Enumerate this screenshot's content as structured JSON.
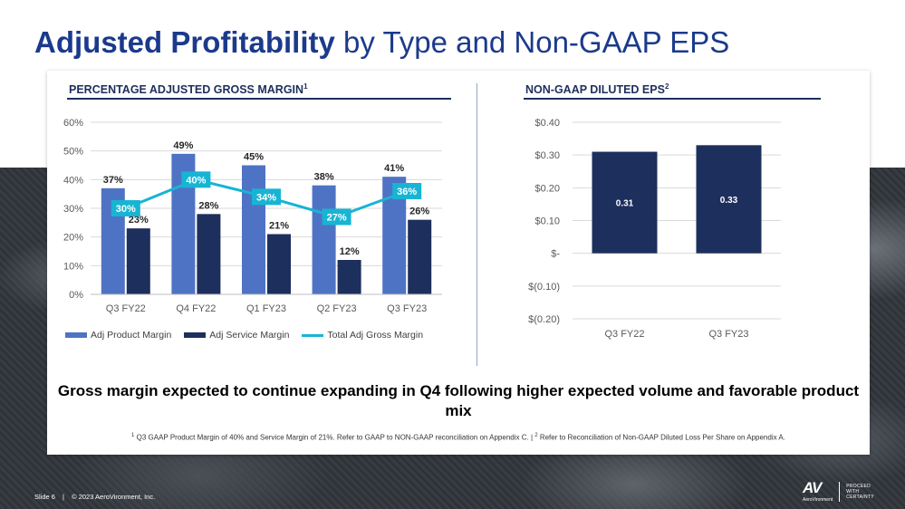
{
  "title": {
    "bold": "Adjusted Profitability",
    "rest": "by Type and Non-GAAP EPS"
  },
  "left": {
    "heading": "PERCENTAGE ADJUSTED GROSS MARGIN",
    "heading_sup": "1"
  },
  "right": {
    "heading": "NON-GAAP DILUTED EPS",
    "heading_sup": "2"
  },
  "chart_data": [
    {
      "type": "bar",
      "title": "PERCENTAGE ADJUSTED GROSS MARGIN",
      "categories": [
        "Q3 FY22",
        "Q4 FY22",
        "Q1 FY23",
        "Q2 FY23",
        "Q3 FY23"
      ],
      "series": [
        {
          "name": "Adj Product Margin",
          "kind": "bar",
          "color": "#4f73c4",
          "values": [
            37,
            49,
            45,
            38,
            41
          ],
          "labels": [
            "37%",
            "49%",
            "45%",
            "38%",
            "41%"
          ]
        },
        {
          "name": "Adj Service Margin",
          "kind": "bar",
          "color": "#1d2f5c",
          "values": [
            23,
            28,
            21,
            12,
            26
          ],
          "labels": [
            "23%",
            "28%",
            "21%",
            "12%",
            "26%"
          ]
        },
        {
          "name": "Total Adj Gross Margin",
          "kind": "line",
          "color": "#17b4d4",
          "values": [
            30,
            40,
            34,
            27,
            36
          ],
          "labels": [
            "30%",
            "40%",
            "34%",
            "27%",
            "36%"
          ]
        }
      ],
      "ylim": [
        0,
        60
      ],
      "yticks": [
        0,
        10,
        20,
        30,
        40,
        50,
        60
      ],
      "ytick_labels": [
        "0%",
        "10%",
        "20%",
        "30%",
        "40%",
        "50%",
        "60%"
      ],
      "grid": true,
      "legend": "bottom"
    },
    {
      "type": "bar",
      "title": "NON-GAAP DILUTED EPS",
      "categories": [
        "Q3 FY22",
        "Q3 FY23"
      ],
      "series": [
        {
          "name": "Non-GAAP Diluted EPS",
          "color": "#1d2f5c",
          "values": [
            0.31,
            0.33
          ],
          "labels": [
            "0.31",
            "0.33"
          ]
        }
      ],
      "ylim": [
        -0.2,
        0.4
      ],
      "yticks": [
        0.4,
        0.3,
        0.2,
        0.1,
        0,
        -0.1,
        -0.2
      ],
      "ytick_labels": [
        "$0.40",
        "$0.30",
        "$0.20",
        "$0.10",
        "$-",
        "$(0.10)",
        "$(0.20)"
      ],
      "grid": true
    }
  ],
  "headline": "Gross margin expected to continue expanding in Q4 following higher expected volume and favorable product mix",
  "footnote": {
    "sup1": "1",
    "text1": " Q3 GAAP Product Margin of 40% and Service Margin of 21%. Refer to GAAP to NON-GAAP reconciliation on Appendix C.  |  ",
    "sup2": "2",
    "text2": " Refer to Reconciliation of Non-GAAP Diluted Loss Per Share on Appendix A."
  },
  "footer": {
    "slide": "Slide 6",
    "separator": "|",
    "copyright": "© 2023 AeroVironment, Inc."
  },
  "logo": {
    "mark": "AV",
    "name": "AeroVironment",
    "tagline": "PROCEED WITH CERTAINTY"
  }
}
